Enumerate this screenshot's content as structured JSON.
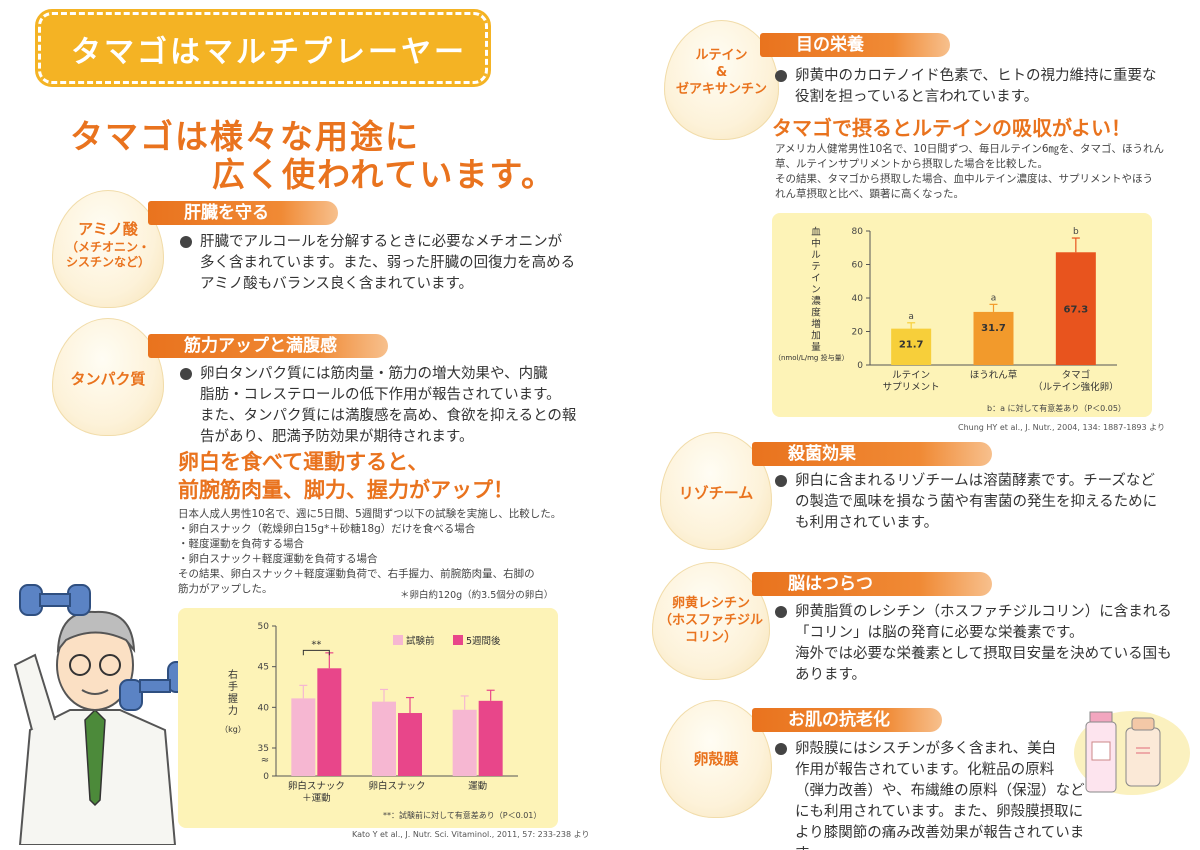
{
  "left": {
    "banner_title": "タマゴはマルチプレーヤー",
    "headline_line1": "タマゴは様々な用途に",
    "headline_line2": "広く使われています。",
    "sections": [
      {
        "egg_lines": [
          "アミノ酸",
          "（メチオニン・",
          "シスチンなど）"
        ],
        "title": "肝臓を守る",
        "text_lines": [
          "肝臓でアルコールを分解するときに必要なメチオニンが",
          "多く含まれています。また、弱った肝臓の回復力を高める",
          "アミノ酸もバランス良く含まれています。"
        ]
      },
      {
        "egg_lines": [
          "タンパク質"
        ],
        "title": "筋力アップと満腹感",
        "text_lines": [
          "卵白タンパク質には筋肉量・筋力の増大効果や、内臓",
          "脂肪・コレステロールの低下作用が報告されています。",
          "また、タンパク質には満腹感を高め、食欲を抑えるとの報",
          "告があり、肥満予防効果が期待されます。"
        ]
      }
    ],
    "sub_headline_line1": "卵白を食べて運動すると、",
    "sub_headline_line2": "前腕筋肉量、脚力、握力がアップ！",
    "study_lines": [
      "日本人成人男性10名で、週に5日間、5週間ずつ以下の試験を実施し、比較した。",
      "・卵白スナック（乾燥卵白15g*＋砂糖18g）だけを食べる場合",
      "・軽度運動を負荷する場合",
      "・卵白スナック＋軽度運動を負荷する場合",
      "その結果、卵白スナック＋軽度運動負荷で、右手握力、前腕筋肉量、右脚の",
      "筋力がアップした。"
    ],
    "study_footnote": "＊卵白約120g（約3.5個分の卵白）",
    "citation": "Kato Y et al., J. Nutr. Sci. Vitaminol., 2011, 57: 233-238 より"
  },
  "right": {
    "sections": [
      {
        "egg_lines": [
          "ルテイン",
          "&",
          "ゼアキサンチン"
        ],
        "title": "目の栄養",
        "text_lines": [
          "卵黄中のカロテノイド色素で、ヒトの視力維持に重要な",
          "役割を担っていると言われています。"
        ]
      },
      {
        "egg_lines": [
          "リゾチーム"
        ],
        "title": "殺菌効果",
        "text_lines": [
          "卵白に含まれるリゾチームは溶菌酵素です。チーズなど",
          "の製造で風味を損なう菌や有害菌の発生を抑えるために",
          "も利用されています。"
        ]
      },
      {
        "egg_lines": [
          "卵黄レシチン",
          "（ホスファチジル",
          "コリン）"
        ],
        "title": "脳はつらつ",
        "text_lines": [
          "卵黄脂質のレシチン（ホスファチジルコリン）に含まれる",
          "「コリン」は脳の発育に必要な栄養素です。",
          "海外では必要な栄養素として摂取目安量を決めている国も",
          "あります。"
        ]
      },
      {
        "egg_lines": [
          "卵殻膜"
        ],
        "title": "お肌の抗老化",
        "text_lines": [
          "卵殻膜にはシスチンが多く含まれ、美白",
          "作用が報告されています。化粧品の原料",
          "（弾力改善）や、布繊維の原料（保湿）など",
          "にも利用されています。また、卵殻膜摂取に",
          "より膝関節の痛み改善効果が報告されています。"
        ]
      }
    ],
    "lutein_headline": "タマゴで摂るとルテインの吸収がよい！",
    "study_lines": [
      "アメリカ人健常男性10名で、10日間ずつ、毎日ルテイン6㎎を、タマゴ、ほうれん",
      "草、ルテインサプリメントから摂取した場合を比較した。",
      "その結果、タマゴから摂取した場合、血中ルテイン濃度は、サプリメントやほう",
      "れん草摂取と比べ、顕著に高くなった。"
    ],
    "citation": "Chung HY et al., J. Nutr., 2004, 134: 1887-1893 より"
  },
  "colors": {
    "orange": "#e9731e",
    "banner": "#f4b324",
    "chart_bg": "#fdf3b7",
    "yellow_bar": "#f7cf3a",
    "red_bar": "#e8541e",
    "pink_light": "#f6b7d2",
    "pink_dark": "#e8468a"
  },
  "chart_data": [
    {
      "type": "bar",
      "ylabel": "右手握力\n（kg）",
      "ylim": [
        0,
        50
      ],
      "yticks": [
        "0",
        "35",
        "40",
        "45",
        "50"
      ],
      "categories": [
        "卵白スナック\n＋運動",
        "卵白スナック",
        "運動"
      ],
      "series": [
        {
          "name": "試験前",
          "values": [
            41.1,
            40.7,
            39.7
          ],
          "errors": [
            1.6,
            1.5,
            1.7
          ],
          "color": "#f6b7d2"
        },
        {
          "name": "5週間後",
          "values": [
            44.8,
            39.3,
            40.8
          ],
          "errors": [
            1.9,
            1.9,
            1.3
          ],
          "color": "#e8468a"
        }
      ],
      "significance": "**",
      "note": "**：試験前に対して有意差あり（P＜0.01）",
      "legend": "top-right",
      "axis_break": "≈"
    },
    {
      "type": "bar",
      "ylabel": "血中ルテイン濃度増加量",
      "yunit": "（nmol/L/mg 投与量）",
      "ylim": [
        0,
        80
      ],
      "yticks": [
        "0",
        "20",
        "40",
        "60",
        "80"
      ],
      "categories": [
        "ルテイン\nサプリメント",
        "ほうれん草",
        "タマゴ\n（ルテイン強化卵）"
      ],
      "values": [
        21.7,
        31.7,
        67.3
      ],
      "labels": [
        "21.7",
        "31.7",
        "67.3"
      ],
      "errors": [
        3.5,
        4.5,
        8.5
      ],
      "letters": [
        "a",
        "a",
        "b"
      ],
      "colors": [
        "#f7cf3a",
        "#f29a2c",
        "#e8541e"
      ],
      "note": "b：a に対して有意差あり（P＜0.05）"
    }
  ]
}
